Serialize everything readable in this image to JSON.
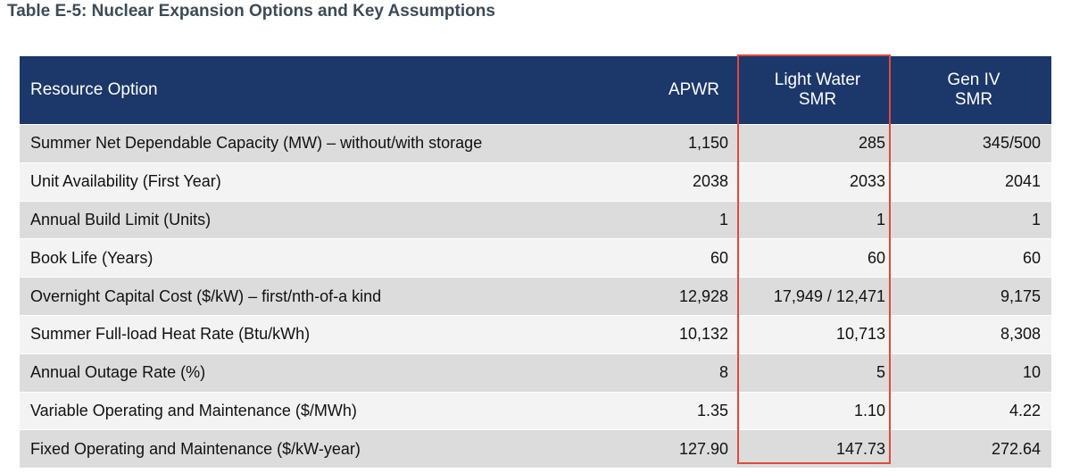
{
  "title": "Table E-5: Nuclear Expansion Options and Key Assumptions",
  "header": {
    "resource_option": "Resource Option",
    "apwr": "APWR",
    "light_water_line1": "Light Water",
    "light_water_line2": "SMR",
    "gen_iv_line1": "Gen IV",
    "gen_iv_line2": "SMR"
  },
  "rows": [
    {
      "label": "Summer Net Dependable Capacity (MW) – without/with storage",
      "apwr": "1,150",
      "lw_smr": "285",
      "gen_iv_smr": "345/500"
    },
    {
      "label": "Unit Availability (First Year)",
      "apwr": "2038",
      "lw_smr": "2033",
      "gen_iv_smr": "2041"
    },
    {
      "label": "Annual Build Limit (Units)",
      "apwr": "1",
      "lw_smr": "1",
      "gen_iv_smr": "1"
    },
    {
      "label": "Book Life (Years)",
      "apwr": "60",
      "lw_smr": "60",
      "gen_iv_smr": "60"
    },
    {
      "label": "Overnight Capital Cost ($/kW) – first/nth-of-a kind",
      "apwr": "12,928",
      "lw_smr": "17,949 / 12,471",
      "gen_iv_smr": "9,175"
    },
    {
      "label": "Summer Full-load Heat Rate (Btu/kWh)",
      "apwr": "10,132",
      "lw_smr": "10,713",
      "gen_iv_smr": "8,308"
    },
    {
      "label": "Annual Outage Rate (%)",
      "apwr": "8",
      "lw_smr": "5",
      "gen_iv_smr": "10"
    },
    {
      "label": "Variable Operating and Maintenance ($/MWh)",
      "apwr": "1.35",
      "lw_smr": "1.10",
      "gen_iv_smr": "4.22"
    },
    {
      "label": "Fixed Operating and Maintenance ($/kW-year)",
      "apwr": "127.90",
      "lw_smr": "147.73",
      "gen_iv_smr": "272.64"
    }
  ],
  "colors": {
    "header_bg": "#1c3769",
    "highlight_border": "#e2483c",
    "row_dark": "#dcdcdc",
    "row_light": "#f3f3f3",
    "title_text": "#3d4a57"
  }
}
